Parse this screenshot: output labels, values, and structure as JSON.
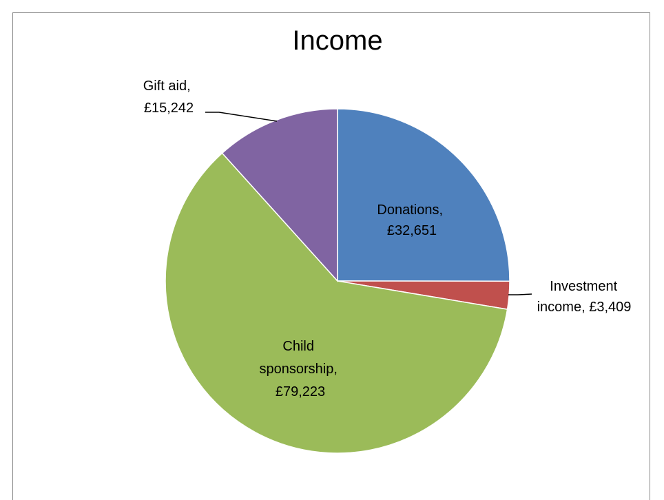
{
  "chart_data": {
    "type": "pie",
    "title": "Income",
    "slices": [
      {
        "name": "Donations",
        "value": 32651,
        "value_label": "£32,651",
        "color": "#4f81bd"
      },
      {
        "name": "Investment income",
        "value": 3409,
        "value_label": "£3,409",
        "color": "#c0504d"
      },
      {
        "name": "Child sponsorship",
        "value": 79223,
        "value_label": "£79,223",
        "color": "#9bbb59"
      },
      {
        "name": "Gift aid",
        "value": 15242,
        "value_label": "£15,242",
        "color": "#8064a2"
      }
    ],
    "labels": {
      "donations": [
        "Donations,",
        "£32,651"
      ],
      "investment": [
        "Investment",
        "income, £3,409"
      ],
      "child": [
        "Child",
        "sponsorship,",
        "£79,223"
      ],
      "giftaid": [
        "Gift aid,",
        "£15,242"
      ]
    },
    "slice_border_color": "#ffffff",
    "leader_line_color": "#000000",
    "frame_border_color": "#868686"
  }
}
